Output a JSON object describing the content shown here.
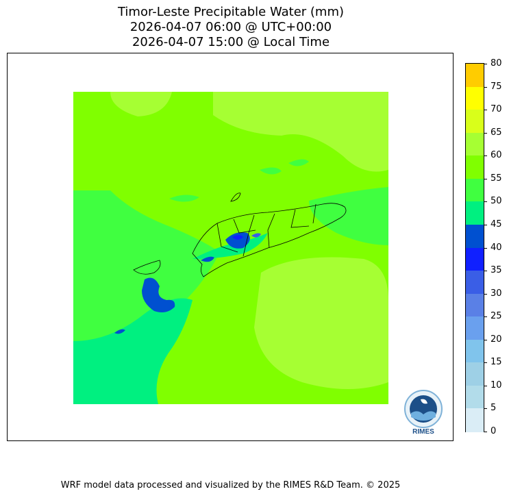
{
  "title": {
    "line1": "Timor-Leste Precipitable Water (mm)",
    "line2": "2026-04-07 06:00 @ UTC+00:00",
    "line3": "2026-04-07 15:00 @ Local Time"
  },
  "colorbar": {
    "ticks": [
      "80",
      "75",
      "70",
      "65",
      "60",
      "55",
      "50",
      "45",
      "40",
      "35",
      "30",
      "25",
      "20",
      "15",
      "10",
      "5",
      "0"
    ],
    "colors_top_to_bottom": [
      "#ffcc00",
      "#ffff00",
      "#d9ff1a",
      "#a6ff33",
      "#80ff00",
      "#40ff40",
      "#00f080",
      "#0050d0",
      "#1020ff",
      "#3a5ee6",
      "#5a80e6",
      "#6aa0ee",
      "#80c4ec",
      "#9ed0e6",
      "#b2dcea",
      "#daedf6"
    ]
  },
  "logo": {
    "text": "RIMES"
  },
  "footer": {
    "text": "WRF model data processed and visualized by the RIMES R&D Team. © 2025"
  }
}
